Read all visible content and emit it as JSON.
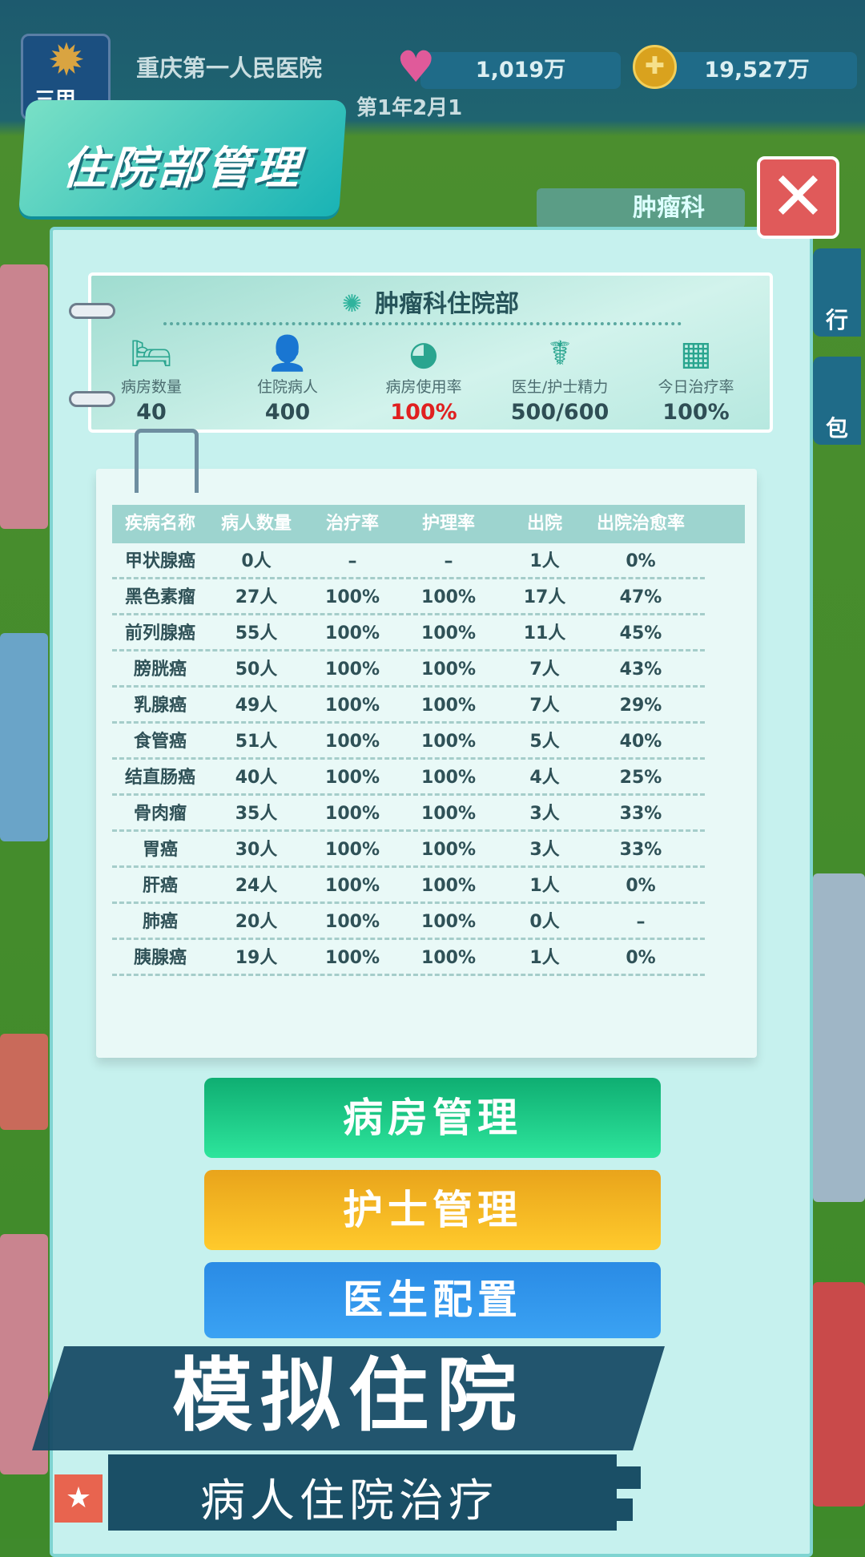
{
  "top_bar": {
    "hospital_name": "重庆第一人民医院",
    "date": "第1年2月1",
    "rank_badge": "三甲",
    "hearts": "1,019万",
    "coins": "19,527万",
    "heart_icon": "heart-icon",
    "coin_icon": "coin-icon"
  },
  "title": "住院部管理",
  "close_icon": "close-icon",
  "map_labels": {
    "dept_sign": "肿瘤科",
    "side_tab_1": "行",
    "side_tab_2": "包"
  },
  "header": {
    "title": "肿瘤科住院部",
    "stats": [
      {
        "label": "病房数量",
        "value": "40",
        "icon": "bed-icon"
      },
      {
        "label": "住院病人",
        "value": "400",
        "icon": "patient-icon"
      },
      {
        "label": "病房使用率",
        "value": "100%",
        "icon": "pie-chart-icon",
        "highlight": "#e02020"
      },
      {
        "label": "医生/护士精力",
        "value": "500/600",
        "icon": "doctor-icon"
      },
      {
        "label": "今日治疗率",
        "value": "100%",
        "icon": "calendar-icon"
      }
    ]
  },
  "table": {
    "columns": [
      "疾病名称",
      "病人数量",
      "治疗率",
      "护理率",
      "出院",
      "出院治愈率"
    ],
    "rows": [
      [
        "甲状腺癌",
        "0人",
        "–",
        "–",
        "1人",
        "0%"
      ],
      [
        "黑色素瘤",
        "27人",
        "100%",
        "100%",
        "17人",
        "47%"
      ],
      [
        "前列腺癌",
        "55人",
        "100%",
        "100%",
        "11人",
        "45%"
      ],
      [
        "膀胱癌",
        "50人",
        "100%",
        "100%",
        "7人",
        "43%"
      ],
      [
        "乳腺癌",
        "49人",
        "100%",
        "100%",
        "7人",
        "29%"
      ],
      [
        "食管癌",
        "51人",
        "100%",
        "100%",
        "5人",
        "40%"
      ],
      [
        "结直肠癌",
        "40人",
        "100%",
        "100%",
        "4人",
        "25%"
      ],
      [
        "骨肉瘤",
        "35人",
        "100%",
        "100%",
        "3人",
        "33%"
      ],
      [
        "胃癌",
        "30人",
        "100%",
        "100%",
        "3人",
        "33%"
      ],
      [
        "肝癌",
        "24人",
        "100%",
        "100%",
        "1人",
        "0%"
      ],
      [
        "肺癌",
        "20人",
        "100%",
        "100%",
        "0人",
        "–"
      ],
      [
        "胰腺癌",
        "19人",
        "100%",
        "100%",
        "1人",
        "0%"
      ]
    ]
  },
  "buttons": {
    "ward": "病房管理",
    "nurse": "护士管理",
    "doctor": "医生配置"
  },
  "promo": {
    "headline": "模拟住院",
    "subline": "病人住院治疗"
  }
}
